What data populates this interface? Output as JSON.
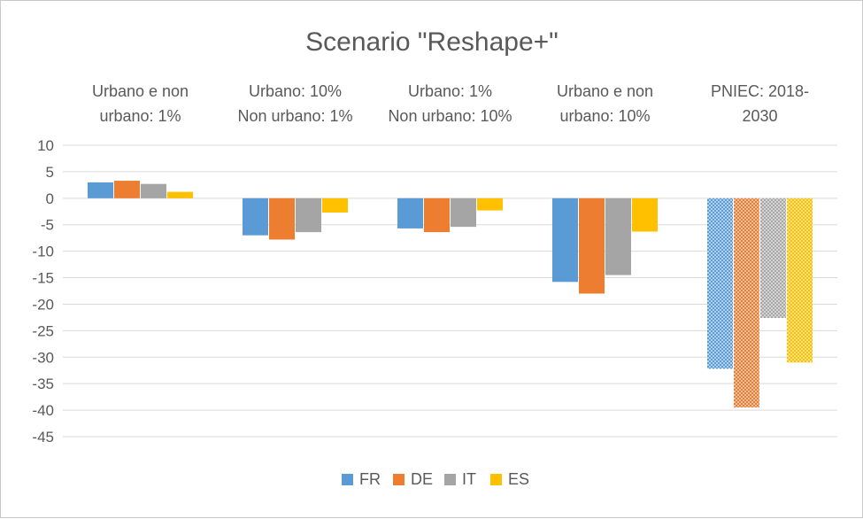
{
  "chart_data": {
    "type": "bar",
    "title": "Scenario \"Reshape+\"",
    "xlabel": "",
    "ylabel": "",
    "ylim": [
      -45,
      10
    ],
    "yticks": [
      10,
      5,
      0,
      -5,
      -10,
      -15,
      -20,
      -25,
      -30,
      -35,
      -40,
      -45
    ],
    "grid": true,
    "legend_position": "bottom",
    "categories": [
      "Urbano e non urbano: 1%",
      "Urbano: 10% Non urbano: 1%",
      "Urbano: 1% Non urbano: 10%",
      "Urbano e non urbano: 10%",
      "PNIEC: 2018-2030"
    ],
    "category_label_lines": [
      [
        "Urbano e non",
        "urbano: 1%"
      ],
      [
        "Urbano: 10%",
        "Non urbano: 1%"
      ],
      [
        "Urbano: 1%",
        "Non urbano: 10%"
      ],
      [
        "Urbano e non",
        "urbano: 10%"
      ],
      [
        "PNIEC: 2018-",
        "2030"
      ]
    ],
    "series": [
      {
        "name": "FR",
        "color": "#5B9BD5",
        "values": [
          3.0,
          -7.0,
          -5.7,
          -15.8,
          -32.2
        ]
      },
      {
        "name": "DE",
        "color": "#ED7D31",
        "values": [
          3.3,
          -7.8,
          -6.4,
          -18.0,
          -39.5
        ]
      },
      {
        "name": "IT",
        "color": "#A5A5A5",
        "values": [
          2.7,
          -6.4,
          -5.4,
          -14.5,
          -22.6
        ]
      },
      {
        "name": "ES",
        "color": "#FFC000",
        "values": [
          1.2,
          -2.7,
          -2.3,
          -6.3,
          -31.0
        ]
      }
    ],
    "patterned_category_index": 4
  }
}
